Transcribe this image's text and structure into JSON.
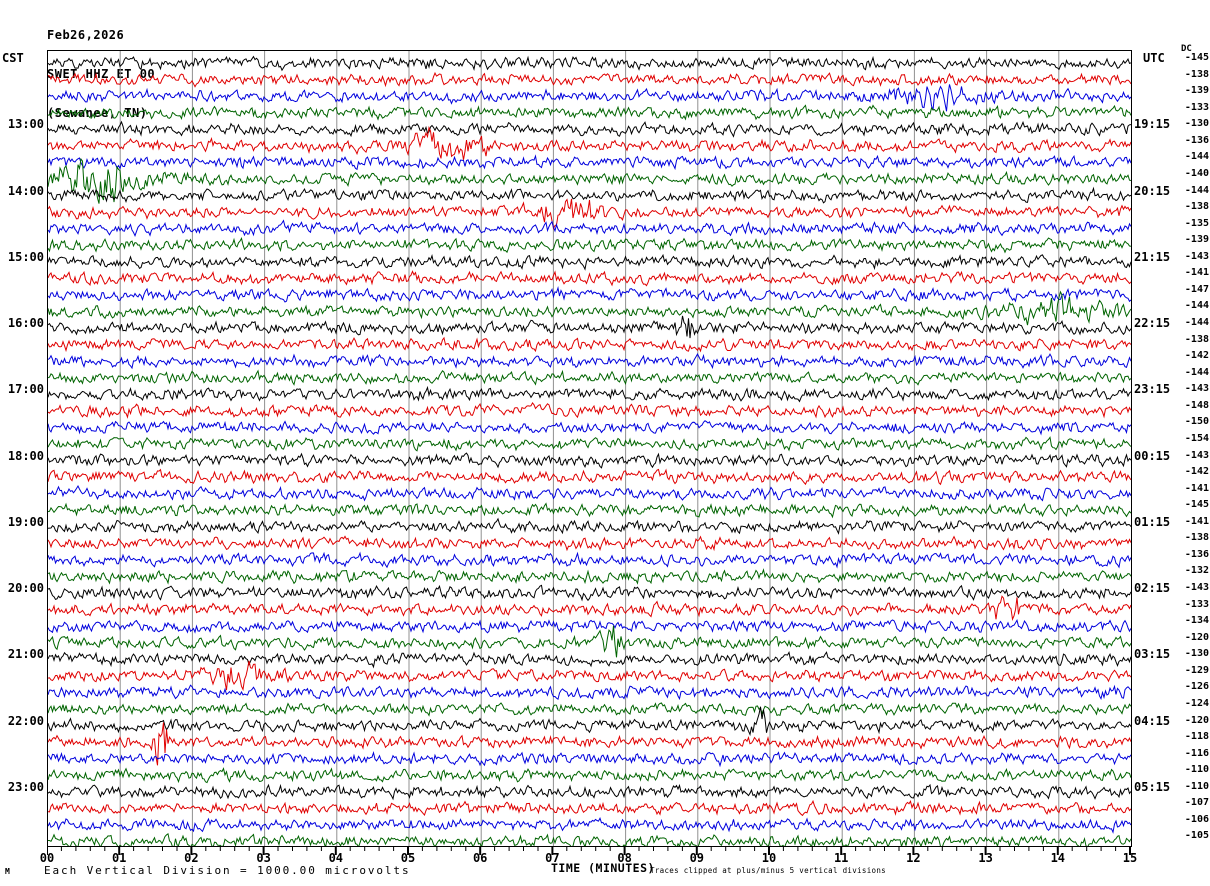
{
  "header": {
    "date": "Feb26,2026",
    "station": "SWET HHZ ET 00",
    "location": "(Sewanee, TN)"
  },
  "axes": {
    "left_label": "CST",
    "right_label": "UTC",
    "dc_label": "DC",
    "x_title": "TIME (MINUTES)",
    "x_ticks": [
      "00",
      "01",
      "02",
      "03",
      "04",
      "05",
      "06",
      "07",
      "08",
      "09",
      "10",
      "11",
      "12",
      "13",
      "14",
      "15"
    ],
    "footer_left": "Each Vertical Division = 1000.00 microvolts",
    "footer_right": "Traces clipped at plus/minus 5 vertical divisions",
    "watermark": "M"
  },
  "colors": {
    "trace_cycle": [
      "#000000",
      "#e00000",
      "#0000dd",
      "#006400"
    ],
    "grid": "#909090",
    "border": "#000000"
  },
  "chart_data": {
    "type": "seismogram-helicorder",
    "station": "SWET HHZ ET 00",
    "station_location": "Sewanee, TN",
    "date": "Feb26,2026",
    "row_duration_minutes": 15,
    "rows_count": 48,
    "x_range_minutes": [
      0,
      15
    ],
    "x_major_tick_minutes": 1,
    "x_minor_tick_minutes": 0.2,
    "left_time_zone": "CST",
    "right_time_zone": "UTC",
    "hour_label_start_row": 4,
    "hour_label_every": 4,
    "cst_hours": [
      "13:00",
      "14:00",
      "15:00",
      "16:00",
      "17:00",
      "18:00",
      "19:00",
      "20:00",
      "21:00",
      "22:00",
      "23:00"
    ],
    "utc_hours": [
      "19:15",
      "20:15",
      "21:15",
      "22:15",
      "23:15",
      "00:15",
      "01:15",
      "02:15",
      "03:15",
      "04:15",
      "05:15"
    ],
    "dc_values": [
      -145,
      -138,
      -139,
      -133,
      -130,
      -136,
      -144,
      -140,
      -144,
      -138,
      -135,
      -139,
      -143,
      -141,
      -147,
      -144,
      -144,
      -138,
      -142,
      -144,
      -143,
      -148,
      -150,
      -154,
      -143,
      -142,
      -141,
      -145,
      -141,
      -138,
      -136,
      -132,
      -143,
      -133,
      -134,
      -120,
      -130,
      -129,
      -126,
      -124,
      -120,
      -118,
      -116,
      -110,
      -110,
      -107,
      -106,
      -105
    ],
    "scale_note": "Each Vertical Division = 1000.00 microvolts",
    "clip_note": "Traces clipped at plus/minus 5 vertical divisions",
    "events": [
      {
        "row": 2,
        "minute": 12.3,
        "width": 0.4,
        "amp": 1.6
      },
      {
        "row": 5,
        "minute": 5.5,
        "width": 0.4,
        "amp": 1.8
      },
      {
        "row": 7,
        "minute": 0.75,
        "width": 0.45,
        "amp": 3.2
      },
      {
        "row": 9,
        "minute": 7.2,
        "width": 0.3,
        "amp": 2.2
      },
      {
        "row": 15,
        "minute": 13.9,
        "width": 0.5,
        "amp": 2.0
      },
      {
        "row": 16,
        "minute": 8.85,
        "width": 0.1,
        "amp": 2.5
      },
      {
        "row": 33,
        "minute": 13.3,
        "width": 0.15,
        "amp": 2.2
      },
      {
        "row": 35,
        "minute": 7.8,
        "width": 0.12,
        "amp": 3.0
      },
      {
        "row": 37,
        "minute": 2.55,
        "width": 0.3,
        "amp": 2.0
      },
      {
        "row": 40,
        "minute": 9.85,
        "width": 0.08,
        "amp": 2.5
      },
      {
        "row": 41,
        "minute": 1.55,
        "width": 0.07,
        "amp": 5.5
      }
    ]
  }
}
